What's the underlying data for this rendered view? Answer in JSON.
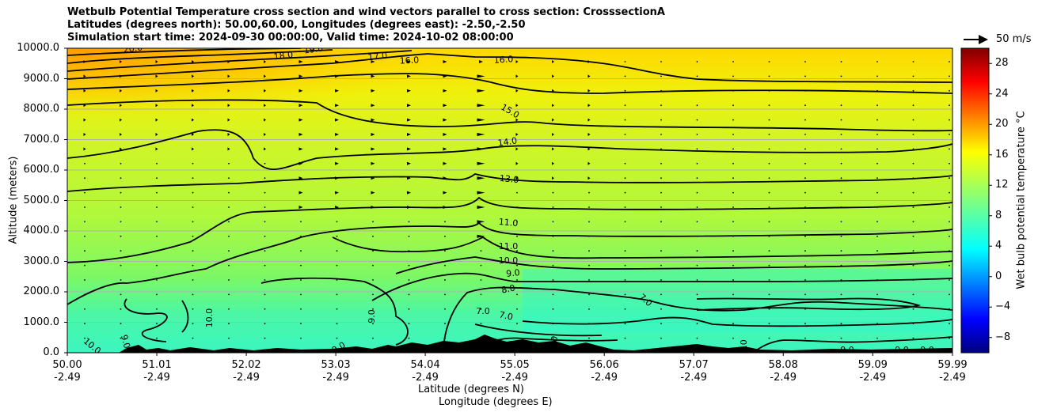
{
  "chart_data": {
    "type": "heatmap",
    "title_lines": [
      "Wetbulb Potential Temperature cross section and wind vectors parallel to cross section: CrosssectionA",
      "Latitudes (degrees north): 50.00,60.00, Longitudes (degrees east): -2.50,-2.50",
      "Simulation start time: 2024-09-30 00:00:00, Valid time: 2024-10-02 08:00:00"
    ],
    "xlabel_lines": [
      "Latitude (degrees N)",
      "Longitude (degrees E)"
    ],
    "ylabel": "Altitude (meters)",
    "x_ticks": [
      {
        "lat": "50.00",
        "lon": "-2.49",
        "value": 50.0
      },
      {
        "lat": "51.01",
        "lon": "-2.49",
        "value": 51.01
      },
      {
        "lat": "52.02",
        "lon": "-2.49",
        "value": 52.02
      },
      {
        "lat": "53.03",
        "lon": "-2.49",
        "value": 53.03
      },
      {
        "lat": "54.04",
        "lon": "-2.49",
        "value": 54.04
      },
      {
        "lat": "55.05",
        "lon": "-2.49",
        "value": 55.05
      },
      {
        "lat": "56.06",
        "lon": "-2.49",
        "value": 56.06
      },
      {
        "lat": "57.07",
        "lon": "-2.49",
        "value": 57.07
      },
      {
        "lat": "58.08",
        "lon": "-2.49",
        "value": 58.08
      },
      {
        "lat": "59.09",
        "lon": "-2.49",
        "value": 59.09
      },
      {
        "lat": "59.99",
        "lon": "-2.49",
        "value": 59.99
      }
    ],
    "y_ticks": [
      "0.0",
      "1000.0",
      "2000.0",
      "3000.0",
      "4000.0",
      "5000.0",
      "6000.0",
      "7000.0",
      "8000.0",
      "9000.0",
      "10000.0"
    ],
    "xlim": [
      50.0,
      59.99
    ],
    "ylim": [
      0,
      10000
    ],
    "grid": "horizontal",
    "colorbar": {
      "label": "Wet bulb potential temperature °C",
      "range": [
        -10,
        30
      ],
      "ticks": [
        "−8",
        "−4",
        "0",
        "4",
        "8",
        "12",
        "16",
        "20",
        "24",
        "28"
      ],
      "tick_values": [
        -8,
        -4,
        0,
        4,
        8,
        12,
        16,
        20,
        24,
        28
      ],
      "colormap": "jet"
    },
    "wind_key_label": "50 m/s",
    "contour_labels": [
      "20.0",
      "19.0",
      "18.0",
      "17.0",
      "16.0",
      "16.0",
      "15.0",
      "14.0",
      "13.0",
      "11.0",
      "11.0",
      "10.0",
      "10.0",
      "9.0",
      "9.0",
      "8.0",
      "7.0",
      "7.0",
      "7.0",
      "6.0",
      "9.0",
      "9.0",
      "9.0",
      "9.0",
      "9.0",
      "9.0",
      "10.0",
      "11.0"
    ],
    "contour_levels": [
      6,
      7,
      8,
      9,
      10,
      11,
      12,
      13,
      14,
      15,
      16,
      17,
      18,
      19,
      20
    ]
  }
}
